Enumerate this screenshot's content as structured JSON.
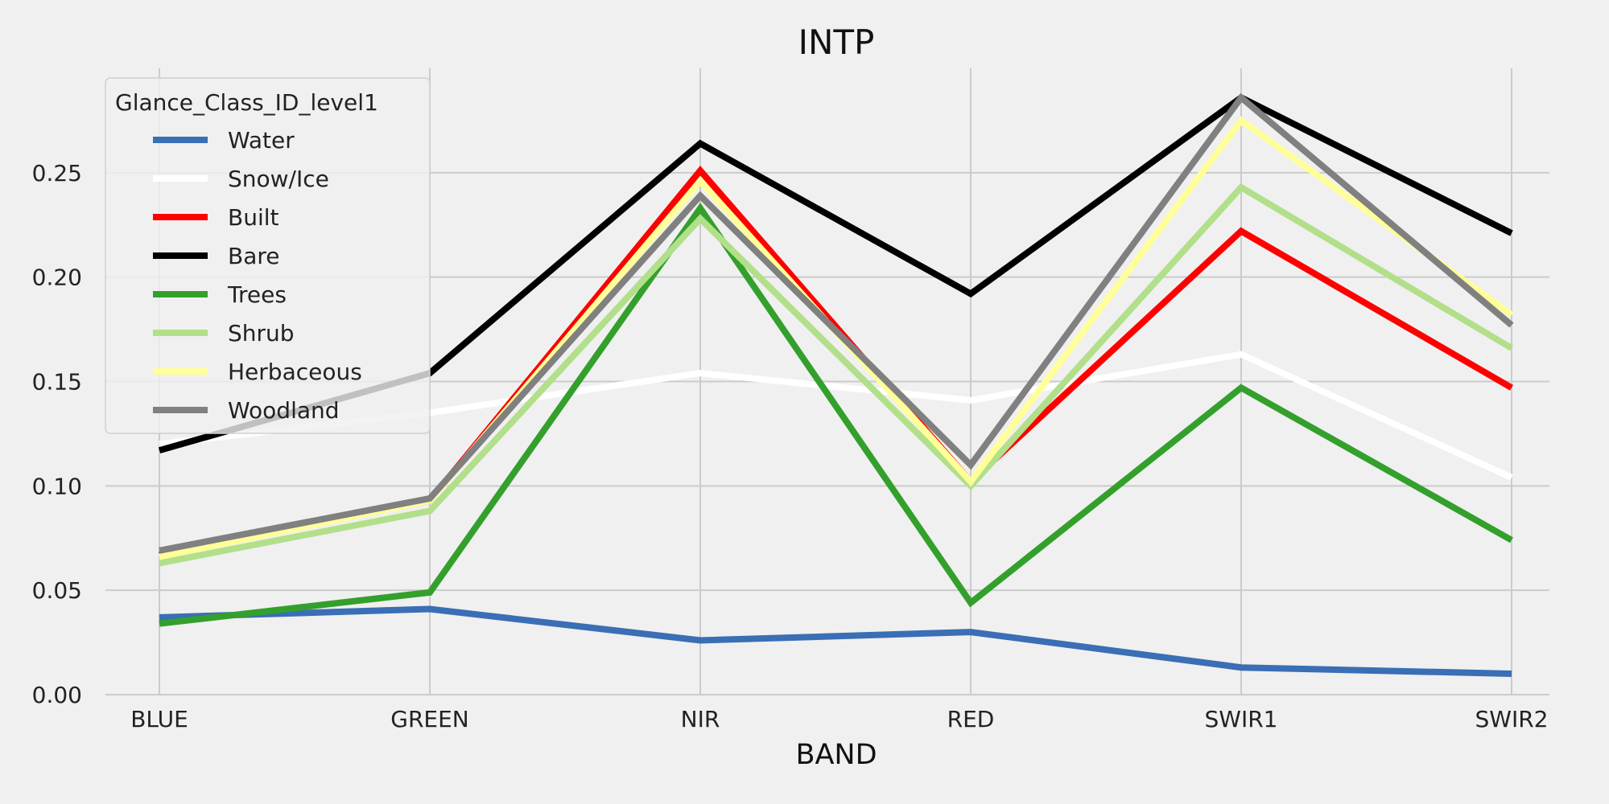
{
  "chart_data": {
    "type": "line",
    "title": "INTP",
    "xlabel": "BAND",
    "ylabel": "",
    "categories": [
      "BLUE",
      "GREEN",
      "NIR",
      "RED",
      "SWIR1",
      "SWIR2"
    ],
    "ylim": [
      0,
      0.3
    ],
    "yticks": [
      0.0,
      0.05,
      0.1,
      0.15,
      0.2,
      0.25
    ],
    "ytick_labels": [
      "0.00",
      "0.05",
      "0.10",
      "0.15",
      "0.20",
      "0.25"
    ],
    "grid": true,
    "legend": {
      "title": "Glance_Class_ID_level1",
      "placement": "upper-left"
    },
    "series": [
      {
        "name": "Water",
        "color": "#3a6eb5",
        "values": [
          0.037,
          0.041,
          0.026,
          0.03,
          0.013,
          0.01
        ]
      },
      {
        "name": "Snow/Ice",
        "color": "#ffffff",
        "values": [
          0.12,
          0.135,
          0.154,
          0.141,
          0.163,
          0.104
        ]
      },
      {
        "name": "Built",
        "color": "#ff0000",
        "values": [
          0.067,
          0.093,
          0.251,
          0.102,
          0.222,
          0.147
        ]
      },
      {
        "name": "Bare",
        "color": "#000000",
        "values": [
          0.117,
          0.154,
          0.264,
          0.192,
          0.286,
          0.221
        ]
      },
      {
        "name": "Trees",
        "color": "#33a02c",
        "values": [
          0.034,
          0.049,
          0.233,
          0.044,
          0.147,
          0.074
        ]
      },
      {
        "name": "Shrub",
        "color": "#b2df8a",
        "values": [
          0.063,
          0.088,
          0.228,
          0.1,
          0.243,
          0.166
        ]
      },
      {
        "name": "Herbaceous",
        "color": "#ffff99",
        "values": [
          0.066,
          0.093,
          0.246,
          0.102,
          0.275,
          0.182
        ]
      },
      {
        "name": "Woodland",
        "color": "#808080",
        "values": [
          0.069,
          0.094,
          0.239,
          0.11,
          0.286,
          0.177
        ]
      }
    ]
  }
}
